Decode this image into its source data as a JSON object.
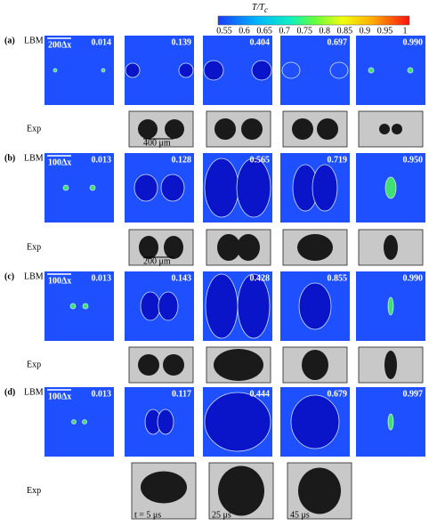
{
  "colorbar": {
    "title": "T/T",
    "title_sub": "c",
    "ticks": [
      "0.55",
      "0.6",
      "0.65",
      "0.7",
      "0.75",
      "0.8",
      "0.85",
      "0.9",
      "0.95",
      "1"
    ]
  },
  "rows": [
    {
      "label": "(a)",
      "sim": "LBM",
      "exp": "Exp",
      "scale": "200Δx",
      "times": [
        "0.014",
        "0.139",
        "0.404",
        "0.697",
        "0.990"
      ],
      "exp_labels": [
        "400 μm",
        "",
        "",
        ""
      ]
    },
    {
      "label": "(b)",
      "sim": "LBM",
      "exp": "Exp",
      "scale": "100Δx",
      "times": [
        "0.013",
        "0.128",
        "0.565",
        "0.719",
        "0.950"
      ],
      "exp_labels": [
        "200 μm",
        "",
        "",
        ""
      ]
    },
    {
      "label": "(c)",
      "sim": "LBM",
      "exp": "Exp",
      "scale": "100Δx",
      "times": [
        "0.013",
        "0.143",
        "0.428",
        "0.855",
        "0.990"
      ],
      "exp_labels": [
        "",
        "",
        "",
        ""
      ]
    },
    {
      "label": "(d)",
      "sim": "LBM",
      "exp": "Exp",
      "scale": "100Δx",
      "times": [
        "0.013",
        "0.117",
        "0.444",
        "0.679",
        "0.997"
      ],
      "exp_labels": [
        "t = 5 μs",
        "25 μs",
        "45 μs"
      ]
    }
  ]
}
